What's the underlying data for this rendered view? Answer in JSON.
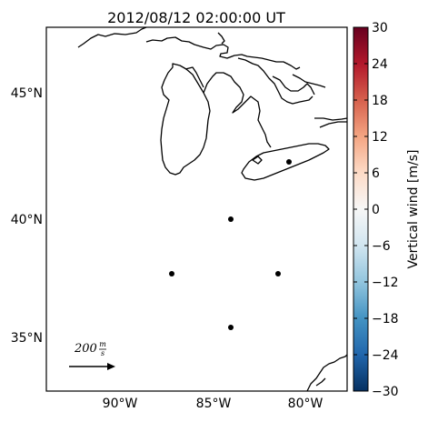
{
  "title": "2012/08/12 02:00:00 UT",
  "map": {
    "lat_ticks": [
      "45°N",
      "40°N",
      "35°N"
    ],
    "lon_ticks": [
      "90°W",
      "85°W",
      "80°W"
    ],
    "stations": [
      {
        "lat": 42.2,
        "lon": -81.0
      },
      {
        "lat": 39.9,
        "lon": -84.0
      },
      {
        "lat": 37.6,
        "lon": -87.0
      },
      {
        "lat": 37.6,
        "lon": -81.5
      },
      {
        "lat": 35.3,
        "lon": -84.0
      }
    ],
    "coastline_color": "#000000",
    "station_color": "#000000"
  },
  "scale_arrow": {
    "value": "200",
    "unit_num": "m",
    "unit_den": "s"
  },
  "colorbar": {
    "label": "Vertical wind [m/s]",
    "ticks": [
      "30",
      "24",
      "18",
      "12",
      "6",
      "0",
      "−6",
      "−12",
      "−18",
      "−24",
      "−30"
    ],
    "range": [
      -30,
      30
    ],
    "colormap": "RdBu_r",
    "colors": [
      "#053061",
      "#2166ac",
      "#4393c3",
      "#92c5de",
      "#d1e5f0",
      "#f7f7f7",
      "#fddbc7",
      "#f4a582",
      "#d6604d",
      "#b2182b",
      "#67001f"
    ]
  }
}
